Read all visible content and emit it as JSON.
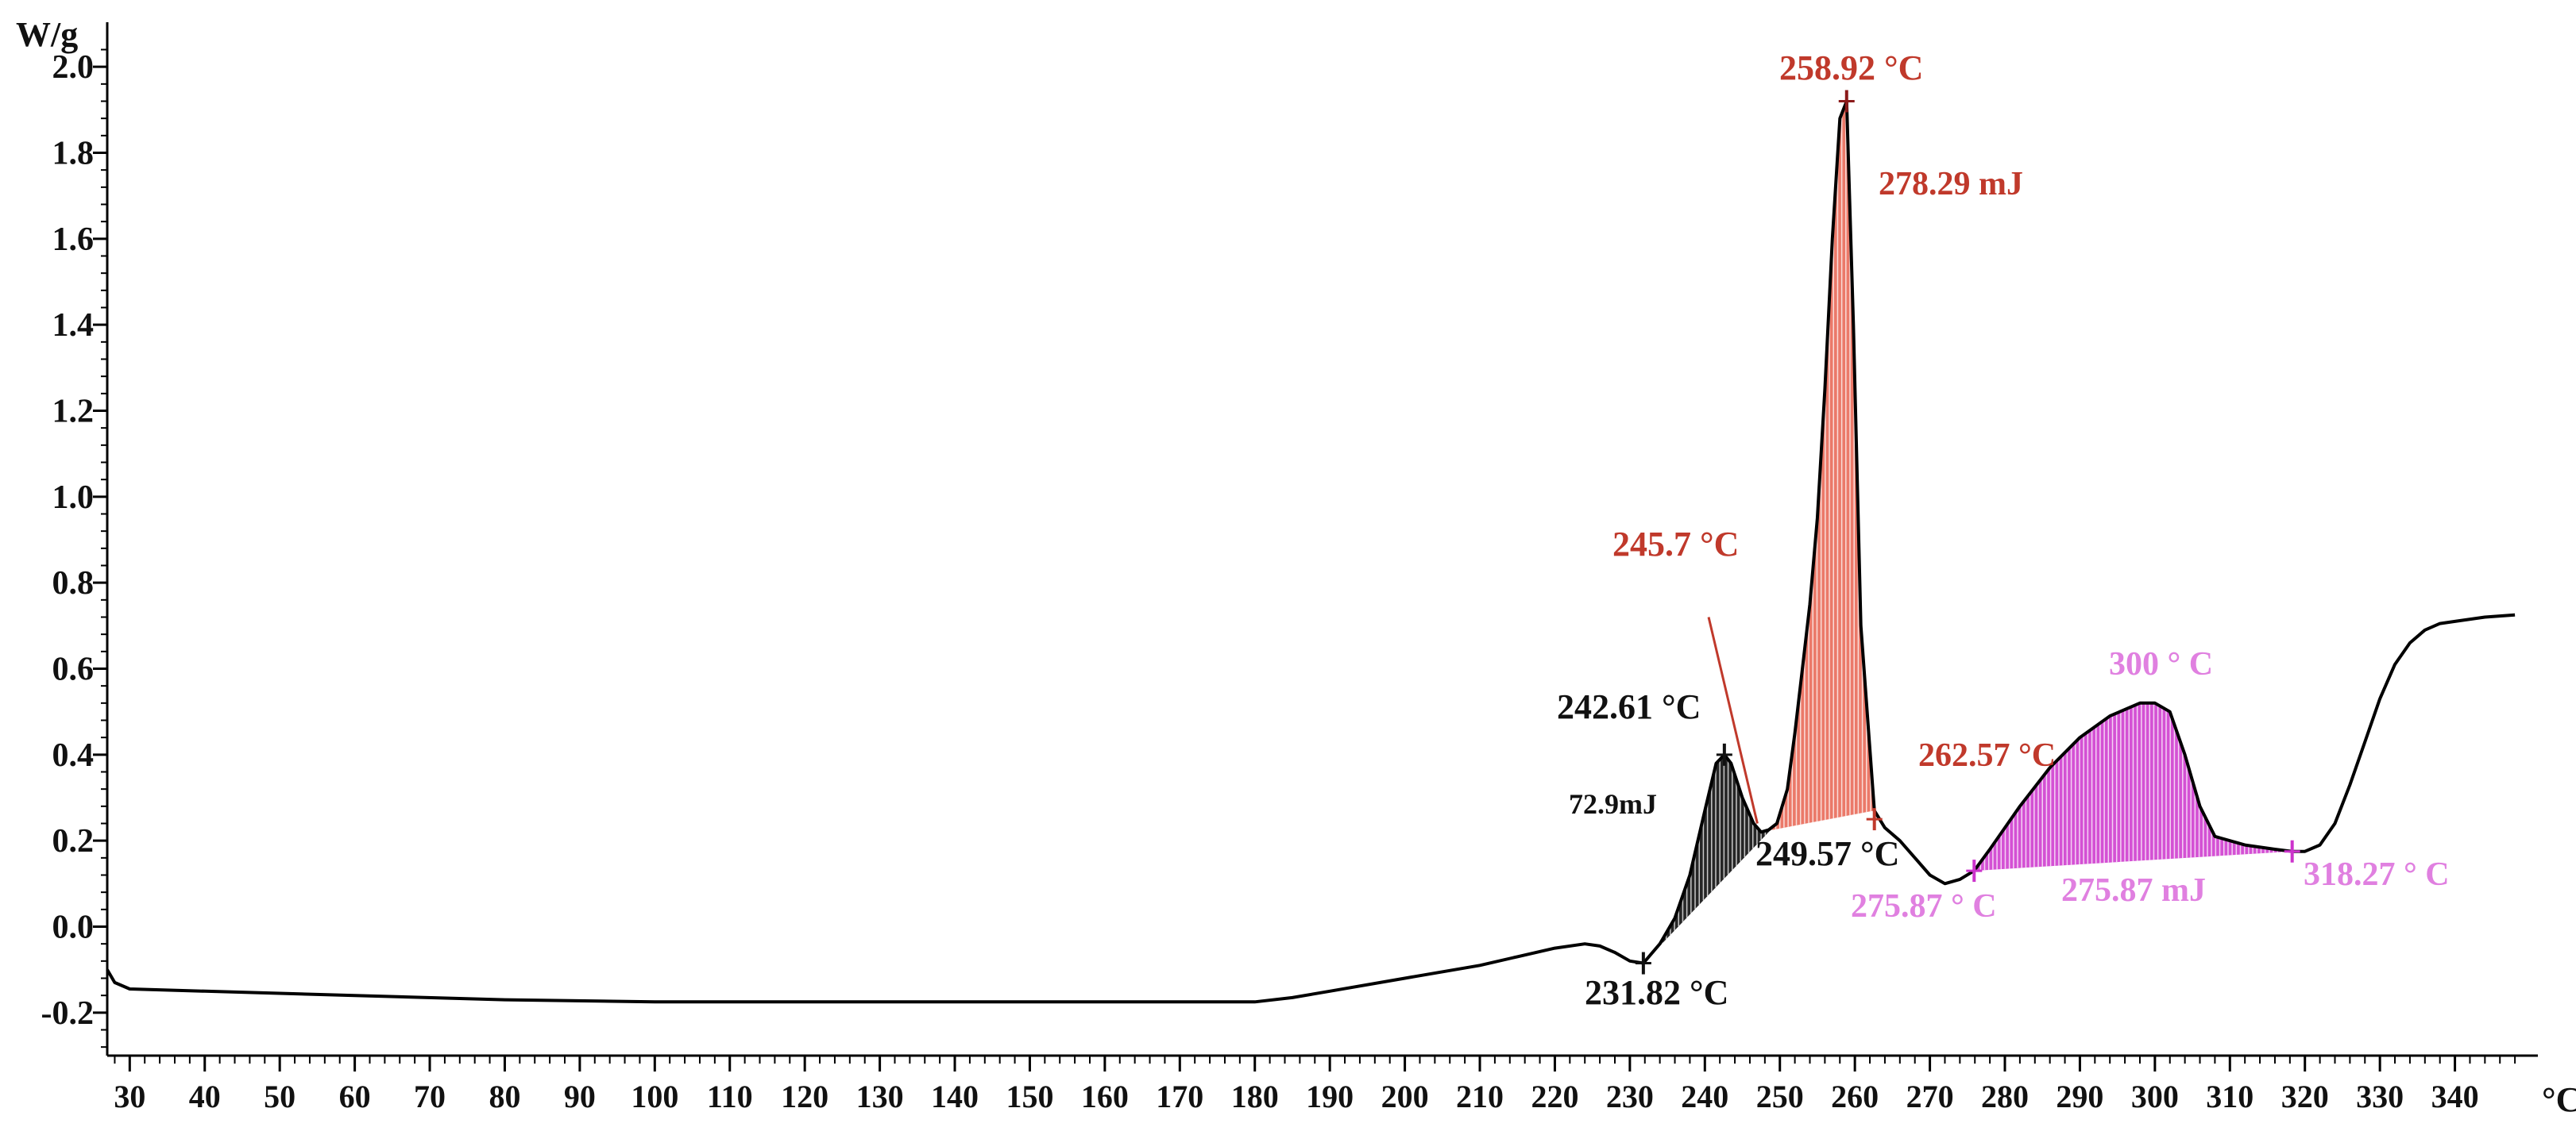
{
  "chart_data": {
    "type": "line",
    "ylabel": "W/g",
    "xlabel": "°C",
    "xlim": [
      27,
      350
    ],
    "ylim": [
      -0.3,
      2.1
    ],
    "x_ticks": [
      30,
      40,
      50,
      60,
      70,
      80,
      90,
      100,
      110,
      120,
      130,
      140,
      150,
      160,
      170,
      180,
      190,
      200,
      210,
      220,
      230,
      240,
      250,
      260,
      270,
      280,
      290,
      300,
      310,
      320,
      330,
      340
    ],
    "y_ticks": [
      -0.2,
      0.0,
      0.2,
      0.4,
      0.6,
      0.8,
      1.0,
      1.2,
      1.4,
      1.6,
      1.8,
      2.0
    ],
    "y_tick_labels": [
      "-0.2",
      "0.0",
      "0.2",
      "0.4",
      "0.6",
      "0.8",
      "1.0",
      "1.2",
      "1.4",
      "1.6",
      "1.8",
      "2.0"
    ],
    "grid": false,
    "series": [
      {
        "color": "#000000",
        "x": [
          27,
          28,
          30,
          40,
          60,
          80,
          100,
          120,
          140,
          160,
          170,
          180,
          185,
          190,
          200,
          210,
          215,
          220,
          224,
          226,
          228,
          230,
          231.8,
          234,
          236,
          238,
          240,
          241.5,
          242.6,
          243.5,
          245,
          246.5,
          247.5,
          248.5,
          249.6,
          251,
          252,
          253,
          254,
          255,
          256,
          257,
          258,
          258.9,
          259.8,
          260.8,
          262.6,
          264,
          266,
          268,
          270,
          272,
          274,
          275.9,
          278,
          282,
          286,
          290,
          294,
          298,
          300,
          302,
          304,
          306,
          308,
          312,
          316,
          318.3,
          320,
          322,
          324,
          326,
          328,
          330,
          332,
          334,
          336,
          338,
          340,
          344,
          348
        ],
        "y": [
          -0.1,
          -0.13,
          -0.145,
          -0.15,
          -0.16,
          -0.17,
          -0.175,
          -0.175,
          -0.175,
          -0.175,
          -0.175,
          -0.175,
          -0.165,
          -0.15,
          -0.12,
          -0.09,
          -0.07,
          -0.05,
          -0.04,
          -0.045,
          -0.06,
          -0.08,
          -0.085,
          -0.04,
          0.02,
          0.12,
          0.27,
          0.38,
          0.4,
          0.38,
          0.3,
          0.24,
          0.22,
          0.225,
          0.24,
          0.32,
          0.45,
          0.6,
          0.75,
          0.95,
          1.25,
          1.6,
          1.88,
          1.92,
          1.4,
          0.7,
          0.27,
          0.23,
          0.2,
          0.16,
          0.12,
          0.1,
          0.11,
          0.13,
          0.18,
          0.28,
          0.37,
          0.44,
          0.49,
          0.52,
          0.52,
          0.5,
          0.4,
          0.28,
          0.21,
          0.19,
          0.18,
          0.175,
          0.175,
          0.19,
          0.24,
          0.33,
          0.43,
          0.53,
          0.61,
          0.66,
          0.69,
          0.705,
          0.71,
          0.72,
          0.725
        ]
      }
    ],
    "annotations": [
      {
        "text": "258.92 °C",
        "color": "#c0392b"
      },
      {
        "text": "278.29 mJ",
        "color": "#c0392b"
      },
      {
        "text": "245.7 °C",
        "color": "#c0392b"
      },
      {
        "text": "262.57 °C",
        "color": "#c0392b"
      },
      {
        "text": "242.61 °C",
        "color": "#111111"
      },
      {
        "text": "72.9mJ",
        "color": "#111111"
      },
      {
        "text": "249.57 °C",
        "color": "#111111"
      },
      {
        "text": "231.82 °C",
        "color": "#111111"
      },
      {
        "text": "300 ° C",
        "color": "#e080e0"
      },
      {
        "text": "275.87 ° C",
        "color": "#e080e0"
      },
      {
        "text": "275.87 mJ",
        "color": "#e080e0"
      },
      {
        "text": "318.27 ° C",
        "color": "#e080e0"
      }
    ],
    "colors": {
      "curve": "#000000",
      "black_area": "#000000",
      "red_area": "#e8614f",
      "magenta_area": "#cc33cc"
    }
  }
}
